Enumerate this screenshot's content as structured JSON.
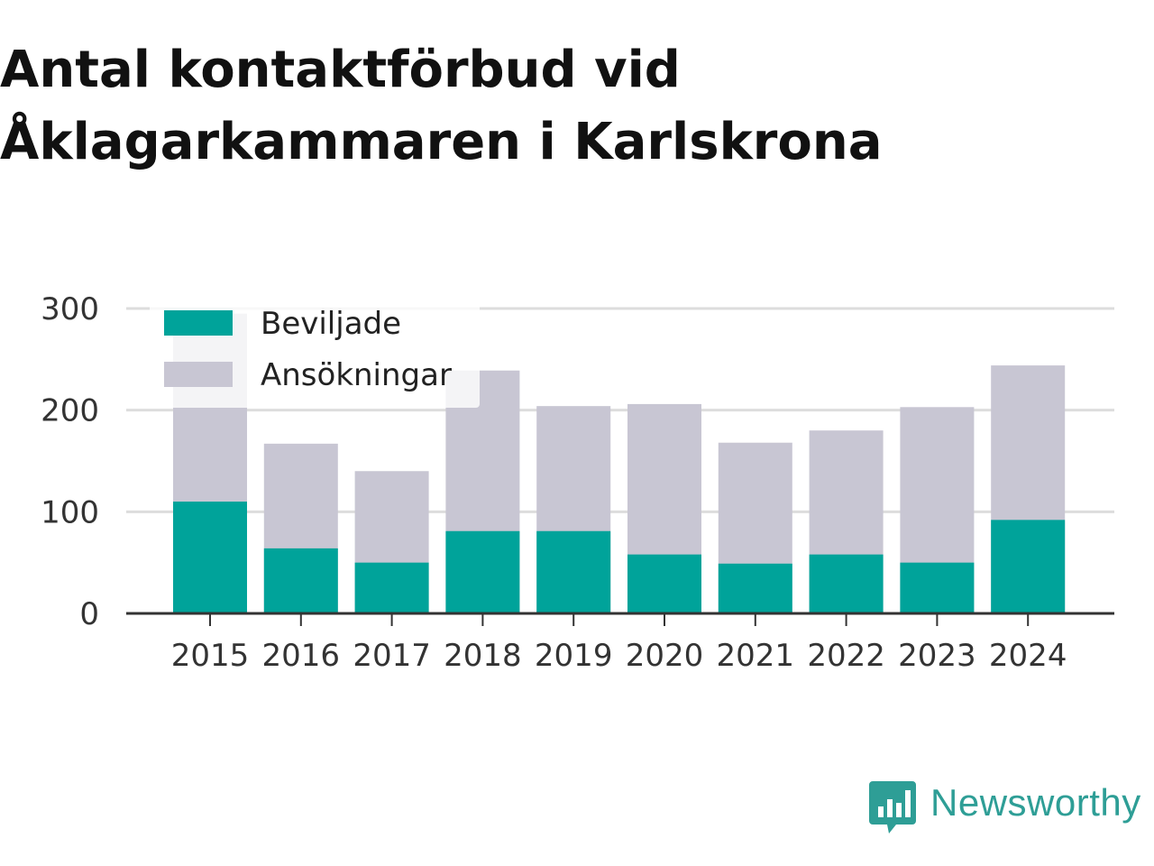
{
  "title": "Antal kontaktförbud vid Åklagarkammaren i Karlskrona",
  "brand": {
    "name": "Newsworthy",
    "icon": "newsworthy-logo-icon",
    "color": "#2e9e96"
  },
  "chart_data": {
    "type": "bar",
    "stacked": false,
    "overlapping": true,
    "categories": [
      "2015",
      "2016",
      "2017",
      "2018",
      "2019",
      "2020",
      "2021",
      "2022",
      "2023",
      "2024"
    ],
    "series": [
      {
        "name": "Ansökningar",
        "color": "#c8c6d3",
        "values": [
          295,
          167,
          140,
          239,
          204,
          206,
          168,
          180,
          203,
          244
        ]
      },
      {
        "name": "Beviljade",
        "color": "#00a39a",
        "values": [
          110,
          64,
          50,
          81,
          81,
          58,
          49,
          58,
          50,
          92
        ]
      }
    ],
    "legend_order": [
      "Beviljade",
      "Ansökningar"
    ],
    "legend_position": "top-left",
    "ylim": [
      0,
      300
    ],
    "yticks": [
      0,
      100,
      200,
      300
    ],
    "grid": true,
    "xlabel": "",
    "ylabel": ""
  }
}
